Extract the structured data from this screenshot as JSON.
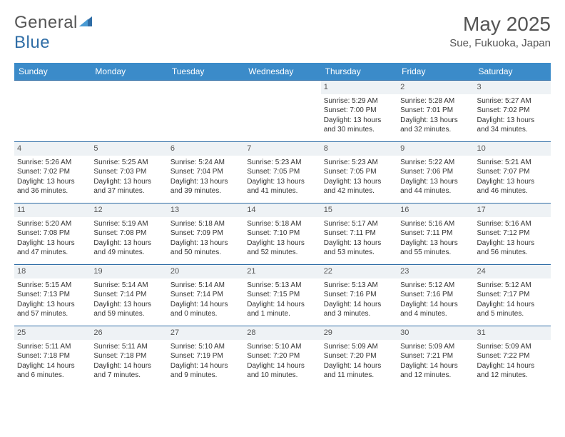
{
  "brand": {
    "part1": "General",
    "part2": "Blue"
  },
  "title": "May 2025",
  "location": "Sue, Fukuoka, Japan",
  "colors": {
    "header_bg": "#3b8bc9",
    "header_text": "#ffffff",
    "row_border": "#2f6da6",
    "daynum_bg": "#eef2f5",
    "text": "#333333",
    "page_bg": "#ffffff",
    "logo_blue": "#2f6da6"
  },
  "calendar": {
    "columns": [
      "Sunday",
      "Monday",
      "Tuesday",
      "Wednesday",
      "Thursday",
      "Friday",
      "Saturday"
    ],
    "cell_font_size": 10,
    "header_font_size": 12,
    "rows": [
      [
        {
          "day": "",
          "lines": []
        },
        {
          "day": "",
          "lines": []
        },
        {
          "day": "",
          "lines": []
        },
        {
          "day": "",
          "lines": []
        },
        {
          "day": "1",
          "lines": [
            "Sunrise: 5:29 AM",
            "Sunset: 7:00 PM",
            "Daylight: 13 hours and 30 minutes."
          ]
        },
        {
          "day": "2",
          "lines": [
            "Sunrise: 5:28 AM",
            "Sunset: 7:01 PM",
            "Daylight: 13 hours and 32 minutes."
          ]
        },
        {
          "day": "3",
          "lines": [
            "Sunrise: 5:27 AM",
            "Sunset: 7:02 PM",
            "Daylight: 13 hours and 34 minutes."
          ]
        }
      ],
      [
        {
          "day": "4",
          "lines": [
            "Sunrise: 5:26 AM",
            "Sunset: 7:02 PM",
            "Daylight: 13 hours and 36 minutes."
          ]
        },
        {
          "day": "5",
          "lines": [
            "Sunrise: 5:25 AM",
            "Sunset: 7:03 PM",
            "Daylight: 13 hours and 37 minutes."
          ]
        },
        {
          "day": "6",
          "lines": [
            "Sunrise: 5:24 AM",
            "Sunset: 7:04 PM",
            "Daylight: 13 hours and 39 minutes."
          ]
        },
        {
          "day": "7",
          "lines": [
            "Sunrise: 5:23 AM",
            "Sunset: 7:05 PM",
            "Daylight: 13 hours and 41 minutes."
          ]
        },
        {
          "day": "8",
          "lines": [
            "Sunrise: 5:23 AM",
            "Sunset: 7:05 PM",
            "Daylight: 13 hours and 42 minutes."
          ]
        },
        {
          "day": "9",
          "lines": [
            "Sunrise: 5:22 AM",
            "Sunset: 7:06 PM",
            "Daylight: 13 hours and 44 minutes."
          ]
        },
        {
          "day": "10",
          "lines": [
            "Sunrise: 5:21 AM",
            "Sunset: 7:07 PM",
            "Daylight: 13 hours and 46 minutes."
          ]
        }
      ],
      [
        {
          "day": "11",
          "lines": [
            "Sunrise: 5:20 AM",
            "Sunset: 7:08 PM",
            "Daylight: 13 hours and 47 minutes."
          ]
        },
        {
          "day": "12",
          "lines": [
            "Sunrise: 5:19 AM",
            "Sunset: 7:08 PM",
            "Daylight: 13 hours and 49 minutes."
          ]
        },
        {
          "day": "13",
          "lines": [
            "Sunrise: 5:18 AM",
            "Sunset: 7:09 PM",
            "Daylight: 13 hours and 50 minutes."
          ]
        },
        {
          "day": "14",
          "lines": [
            "Sunrise: 5:18 AM",
            "Sunset: 7:10 PM",
            "Daylight: 13 hours and 52 minutes."
          ]
        },
        {
          "day": "15",
          "lines": [
            "Sunrise: 5:17 AM",
            "Sunset: 7:11 PM",
            "Daylight: 13 hours and 53 minutes."
          ]
        },
        {
          "day": "16",
          "lines": [
            "Sunrise: 5:16 AM",
            "Sunset: 7:11 PM",
            "Daylight: 13 hours and 55 minutes."
          ]
        },
        {
          "day": "17",
          "lines": [
            "Sunrise: 5:16 AM",
            "Sunset: 7:12 PM",
            "Daylight: 13 hours and 56 minutes."
          ]
        }
      ],
      [
        {
          "day": "18",
          "lines": [
            "Sunrise: 5:15 AM",
            "Sunset: 7:13 PM",
            "Daylight: 13 hours and 57 minutes."
          ]
        },
        {
          "day": "19",
          "lines": [
            "Sunrise: 5:14 AM",
            "Sunset: 7:14 PM",
            "Daylight: 13 hours and 59 minutes."
          ]
        },
        {
          "day": "20",
          "lines": [
            "Sunrise: 5:14 AM",
            "Sunset: 7:14 PM",
            "Daylight: 14 hours and 0 minutes."
          ]
        },
        {
          "day": "21",
          "lines": [
            "Sunrise: 5:13 AM",
            "Sunset: 7:15 PM",
            "Daylight: 14 hours and 1 minute."
          ]
        },
        {
          "day": "22",
          "lines": [
            "Sunrise: 5:13 AM",
            "Sunset: 7:16 PM",
            "Daylight: 14 hours and 3 minutes."
          ]
        },
        {
          "day": "23",
          "lines": [
            "Sunrise: 5:12 AM",
            "Sunset: 7:16 PM",
            "Daylight: 14 hours and 4 minutes."
          ]
        },
        {
          "day": "24",
          "lines": [
            "Sunrise: 5:12 AM",
            "Sunset: 7:17 PM",
            "Daylight: 14 hours and 5 minutes."
          ]
        }
      ],
      [
        {
          "day": "25",
          "lines": [
            "Sunrise: 5:11 AM",
            "Sunset: 7:18 PM",
            "Daylight: 14 hours and 6 minutes."
          ]
        },
        {
          "day": "26",
          "lines": [
            "Sunrise: 5:11 AM",
            "Sunset: 7:18 PM",
            "Daylight: 14 hours and 7 minutes."
          ]
        },
        {
          "day": "27",
          "lines": [
            "Sunrise: 5:10 AM",
            "Sunset: 7:19 PM",
            "Daylight: 14 hours and 9 minutes."
          ]
        },
        {
          "day": "28",
          "lines": [
            "Sunrise: 5:10 AM",
            "Sunset: 7:20 PM",
            "Daylight: 14 hours and 10 minutes."
          ]
        },
        {
          "day": "29",
          "lines": [
            "Sunrise: 5:09 AM",
            "Sunset: 7:20 PM",
            "Daylight: 14 hours and 11 minutes."
          ]
        },
        {
          "day": "30",
          "lines": [
            "Sunrise: 5:09 AM",
            "Sunset: 7:21 PM",
            "Daylight: 14 hours and 12 minutes."
          ]
        },
        {
          "day": "31",
          "lines": [
            "Sunrise: 5:09 AM",
            "Sunset: 7:22 PM",
            "Daylight: 14 hours and 12 minutes."
          ]
        }
      ]
    ]
  }
}
